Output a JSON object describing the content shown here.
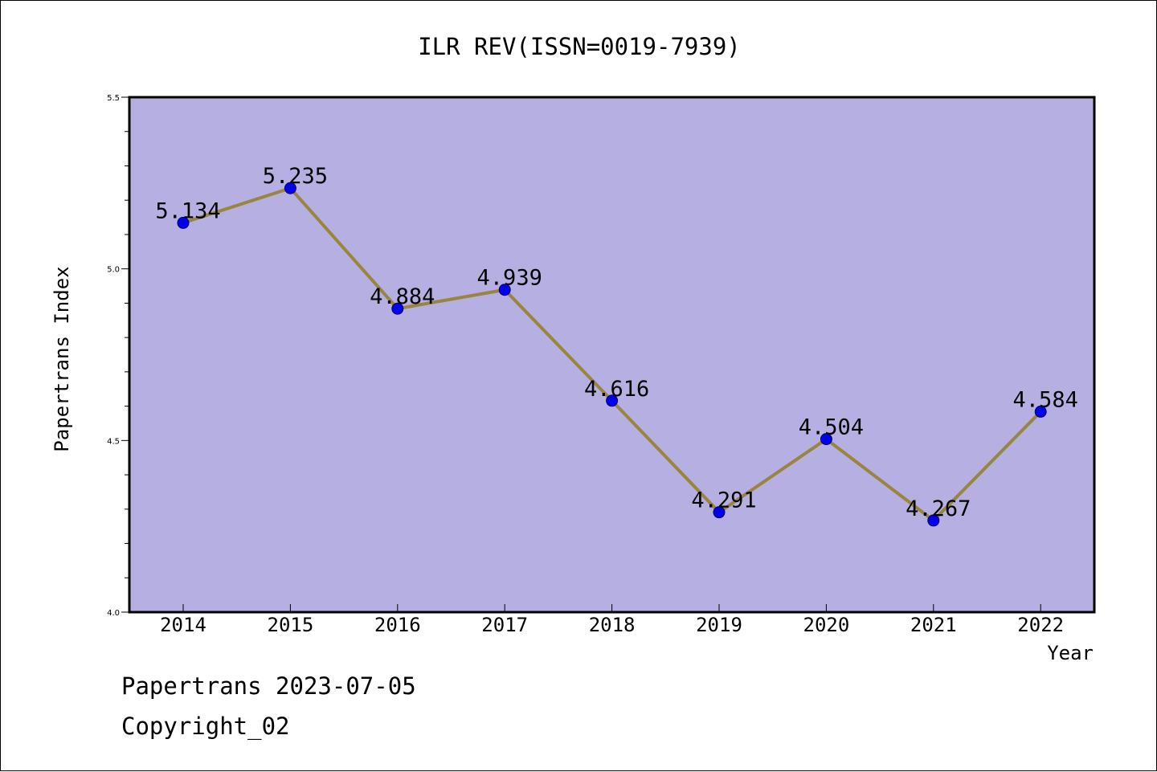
{
  "chart_data": {
    "type": "line",
    "title": "ILR REV(ISSN=0019-7939)",
    "xlabel": "Year",
    "ylabel": "Papertrans Index",
    "x": [
      "2014",
      "2015",
      "2016",
      "2017",
      "2018",
      "2019",
      "2020",
      "2021",
      "2022"
    ],
    "values": [
      5.134,
      5.235,
      4.884,
      4.939,
      4.616,
      4.291,
      4.504,
      4.267,
      4.584
    ],
    "data_labels": [
      "5.134",
      "5.235",
      "4.884",
      "4.939",
      "4.616",
      "4.291",
      "4.504",
      "4.267",
      "4.584"
    ],
    "ylim": [
      4.0,
      5.5
    ],
    "yticks": [
      "4.0",
      "4.5",
      "5.0",
      "5.5"
    ],
    "grid": false,
    "colors": {
      "plot_background": "#b5afe2",
      "line": "#9a8540",
      "marker": "#0000ee"
    }
  },
  "footer": {
    "line1": "Papertrans 2023-07-05",
    "line2": "Copyright_02"
  }
}
